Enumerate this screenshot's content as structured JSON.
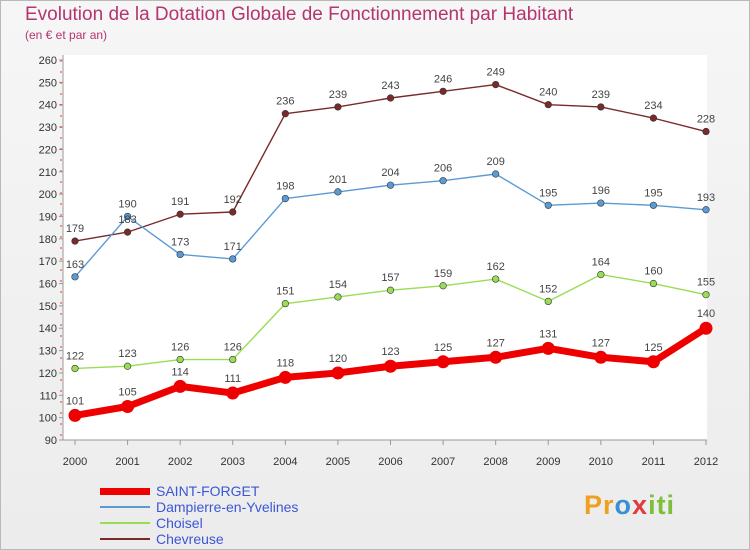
{
  "chart_data": {
    "type": "line",
    "title": "Evolution de la Dotation Globale de Fonctionnement par Habitant",
    "subtitle": "(en € et par an)",
    "xlabel": "",
    "ylabel": "",
    "x": [
      "2000",
      "2001",
      "2002",
      "2003",
      "2004",
      "2005",
      "2006",
      "2007",
      "2008",
      "2009",
      "2010",
      "2011",
      "2012"
    ],
    "ylim": [
      90,
      260
    ],
    "yticks": [
      90,
      100,
      110,
      120,
      130,
      140,
      150,
      160,
      170,
      180,
      190,
      200,
      210,
      220,
      230,
      240,
      250,
      260
    ],
    "grid": false,
    "legend_position": "bottom-left",
    "series": [
      {
        "name": "SAINT-FORGET",
        "color": "#ee0000",
        "values": [
          101,
          105,
          114,
          111,
          118,
          120,
          123,
          125,
          127,
          131,
          127,
          125,
          140
        ]
      },
      {
        "name": "Dampierre-en-Yvelines",
        "color": "#5b9bd5",
        "values": [
          163,
          190,
          173,
          171,
          198,
          201,
          204,
          206,
          209,
          195,
          196,
          195,
          193
        ]
      },
      {
        "name": "Choisel",
        "color": "#99dd55",
        "values": [
          122,
          123,
          126,
          126,
          151,
          154,
          157,
          159,
          162,
          152,
          164,
          160,
          155
        ]
      },
      {
        "name": "Chevreuse",
        "color": "#7a2a2a",
        "values": [
          179,
          183,
          191,
          192,
          236,
          239,
          243,
          246,
          249,
          240,
          239,
          234,
          228
        ]
      }
    ]
  },
  "legend": {
    "text_color": "#3b56d8"
  },
  "brand": {
    "p1": "Pr",
    "p2": "o",
    "p3": "x",
    "p4": "iti"
  }
}
